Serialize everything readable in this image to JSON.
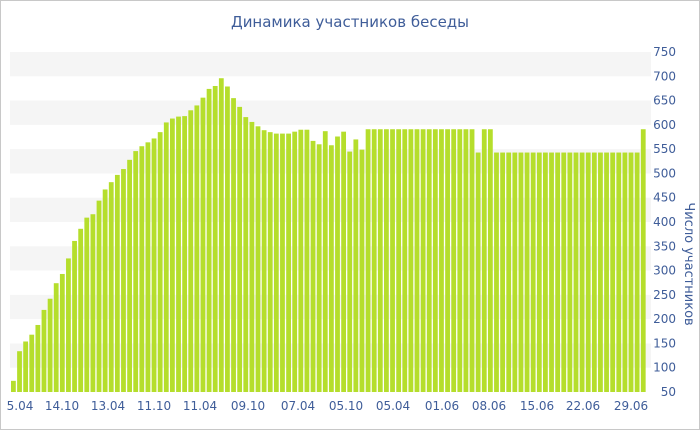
{
  "chart_data": {
    "type": "bar",
    "title": "Динамика участников беседы",
    "xlabel": "",
    "ylabel": "Число участников",
    "ylim": [
      50,
      750
    ],
    "y_ticks": [
      50,
      100,
      150,
      200,
      250,
      300,
      350,
      400,
      450,
      500,
      550,
      600,
      650,
      700,
      750
    ],
    "y_axis_side": "right",
    "grid": "alternating horizontal bands",
    "bar_color": "#b5de2c",
    "band_color": "#f5f5f5",
    "text_color": "#3f5d99",
    "x_tick_labels": [
      "5.04",
      "14.10",
      "13.04",
      "11.10",
      "11.04",
      "09.10",
      "07.04",
      "05.10",
      "05.04",
      "01.06",
      "08.06",
      "15.06",
      "22.06",
      "29.06"
    ],
    "values": [
      73,
      134,
      154,
      168,
      188,
      219,
      242,
      274,
      293,
      325,
      361,
      386,
      409,
      416,
      444,
      467,
      482,
      497,
      509,
      528,
      546,
      556,
      564,
      572,
      585,
      605,
      613,
      617,
      618,
      630,
      640,
      656,
      674,
      680,
      696,
      679,
      655,
      637,
      616,
      606,
      597,
      589,
      585,
      582,
      582,
      582,
      586,
      590,
      590,
      567,
      560,
      587,
      558,
      576,
      586,
      545,
      570,
      549,
      591,
      591,
      591,
      591,
      591,
      591,
      591,
      591,
      591,
      591,
      591,
      591,
      591,
      591,
      591,
      591,
      591,
      591,
      543,
      591,
      591,
      543,
      543,
      543,
      543,
      543,
      543,
      543,
      543,
      543,
      543,
      543,
      543,
      543,
      543,
      543,
      543,
      543,
      543,
      543,
      543,
      543,
      543,
      543,
      543,
      591
    ]
  }
}
